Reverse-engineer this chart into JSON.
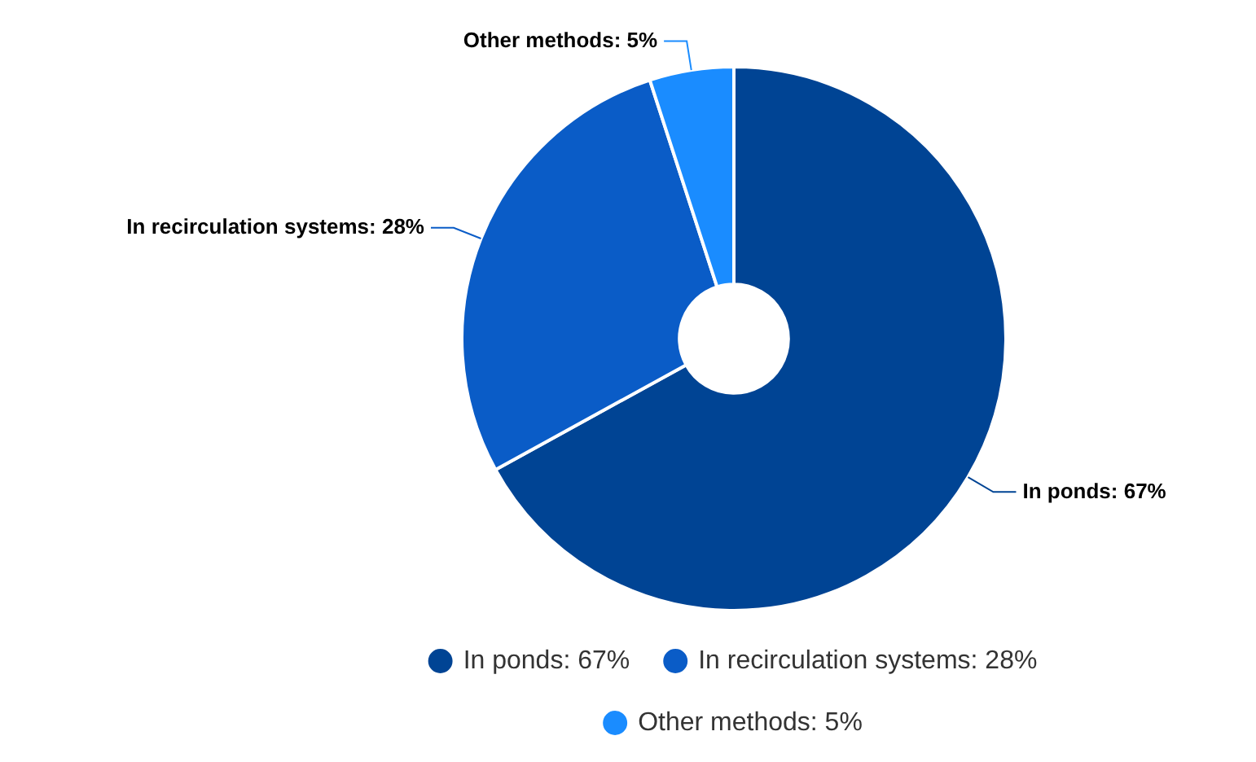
{
  "chart_data": {
    "type": "donut",
    "categories": [
      "In ponds: 67%",
      "In recirculation systems: 28%",
      "Other methods: 5%"
    ],
    "values": [
      67,
      28,
      5
    ],
    "colors": [
      "#004494",
      "#0a5cc7",
      "#1a8cff"
    ],
    "legend": "bottom"
  }
}
